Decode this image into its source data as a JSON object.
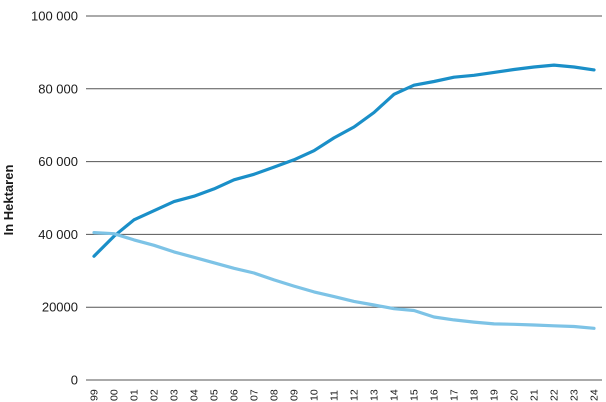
{
  "chart_data": {
    "type": "line",
    "title": "",
    "xlabel": "",
    "ylabel": "In Hektaren",
    "ylim": [
      0,
      100000
    ],
    "ytick_labels": [
      "0",
      "20000",
      "40 000",
      "60 000",
      "80 000",
      "100 000"
    ],
    "ytick_values": [
      0,
      20000,
      40000,
      60000,
      80000,
      100000
    ],
    "grid": true,
    "x": [
      "99",
      "00",
      "01",
      "02",
      "03",
      "04",
      "05",
      "06",
      "07",
      "08",
      "09",
      "10",
      "11",
      "12",
      "13",
      "14",
      "15",
      "16",
      "17",
      "18",
      "19",
      "20",
      "21",
      "22",
      "23",
      "24"
    ],
    "series": [
      {
        "color": "#1a8fc8",
        "values": [
          34000,
          39500,
          44000,
          46500,
          49000,
          50500,
          52500,
          55000,
          56500,
          58500,
          60500,
          63000,
          66500,
          69500,
          73500,
          78500,
          81000,
          82000,
          83200,
          83700,
          84500,
          85300,
          86000,
          86500,
          86000,
          85200
        ]
      },
      {
        "color": "#7dc3e6",
        "values": [
          40500,
          40200,
          38500,
          37000,
          35200,
          33700,
          32200,
          30700,
          29400,
          27500,
          25800,
          24200,
          22900,
          21600,
          20600,
          19600,
          19100,
          17300,
          16500,
          15900,
          15400,
          15300,
          15100,
          14900,
          14700,
          14200
        ]
      }
    ]
  }
}
